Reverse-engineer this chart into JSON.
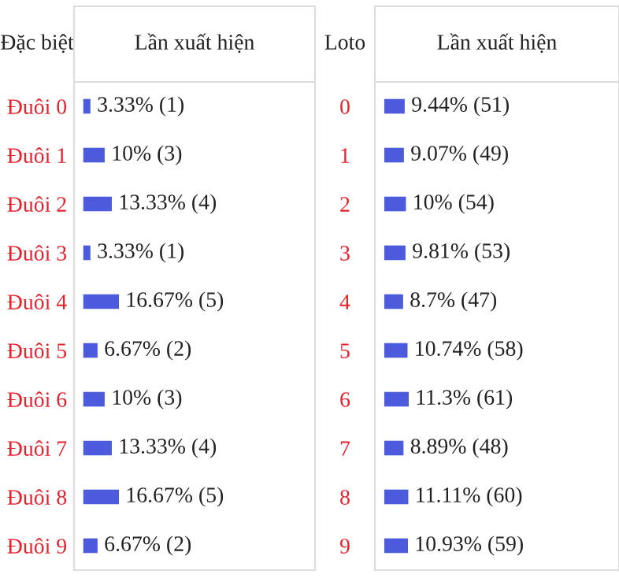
{
  "chart_data": [
    {
      "type": "bar",
      "orientation": "horizontal",
      "xlabel": "Lần xuất hiện",
      "ylabel": "Đặc biệt",
      "categories": [
        "Đuôi 0",
        "Đuôi 1",
        "Đuôi 2",
        "Đuôi 3",
        "Đuôi 4",
        "Đuôi 5",
        "Đuôi 6",
        "Đuôi 7",
        "Đuôi 8",
        "Đuôi 9"
      ],
      "values": [
        3.33,
        10,
        13.33,
        3.33,
        16.67,
        6.67,
        10,
        13.33,
        16.67,
        6.67
      ],
      "color": "#4b5bdc",
      "value_labels": [
        "3.33% (1)",
        "10% (3)",
        "13.33% (4)",
        "3.33% (1)",
        "16.67% (5)",
        "6.67% (2)",
        "10% (3)",
        "13.33% (4)",
        "16.67% (5)",
        "6.67% (2)"
      ]
    },
    {
      "type": "bar",
      "orientation": "horizontal",
      "xlabel": "Lần xuất hiện",
      "ylabel": "Loto",
      "categories": [
        "0",
        "1",
        "2",
        "3",
        "4",
        "5",
        "6",
        "7",
        "8",
        "9"
      ],
      "values": [
        9.44,
        9.07,
        10,
        9.81,
        8.7,
        10.74,
        11.3,
        8.89,
        11.11,
        10.93
      ],
      "color": "#4b5bdc",
      "value_labels": [
        "9.44% (51)",
        "9.07% (49)",
        "10% (54)",
        "9.81% (53)",
        "8.7% (47)",
        "10.74% (58)",
        "11.3% (61)",
        "8.89% (48)",
        "11.11% (60)",
        "10.93% (59)"
      ]
    }
  ]
}
